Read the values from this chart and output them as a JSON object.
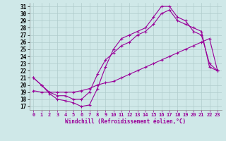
{
  "xlabel": "Windchill (Refroidissement éolien,°C)",
  "background_color": "#cfe8e8",
  "line_color": "#990099",
  "xlim": [
    -0.5,
    23.5
  ],
  "ylim": [
    16.5,
    31.5
  ],
  "xticks": [
    0,
    1,
    2,
    3,
    4,
    5,
    6,
    7,
    8,
    9,
    10,
    11,
    12,
    13,
    14,
    15,
    16,
    17,
    18,
    19,
    20,
    21,
    22,
    23
  ],
  "yticks": [
    17,
    18,
    19,
    20,
    21,
    22,
    23,
    24,
    25,
    26,
    27,
    28,
    29,
    30,
    31
  ],
  "line1_x": [
    0,
    1,
    2,
    3,
    4,
    5,
    6,
    7,
    8,
    9,
    10,
    11,
    12,
    13,
    14,
    15,
    16,
    17,
    18,
    19,
    20,
    21,
    22,
    23
  ],
  "line1_y": [
    21.0,
    20.0,
    18.8,
    18.0,
    17.8,
    17.5,
    17.0,
    17.2,
    19.5,
    22.5,
    25.0,
    26.5,
    27.0,
    27.5,
    28.0,
    29.5,
    31.0,
    31.0,
    29.5,
    29.0,
    27.5,
    27.0,
    23.0,
    22.0
  ],
  "line2_x": [
    0,
    1,
    2,
    3,
    4,
    5,
    6,
    7,
    8,
    9,
    10,
    11,
    12,
    13,
    14,
    15,
    16,
    17,
    18,
    19,
    20,
    21,
    22,
    23
  ],
  "line2_y": [
    21.0,
    20.0,
    19.0,
    18.5,
    18.5,
    18.0,
    18.0,
    19.0,
    21.5,
    23.5,
    24.5,
    25.5,
    26.0,
    27.0,
    27.5,
    28.5,
    30.0,
    30.5,
    29.0,
    28.5,
    28.0,
    27.5,
    22.5,
    22.0
  ],
  "line3_x": [
    0,
    1,
    2,
    3,
    4,
    5,
    6,
    7,
    8,
    9,
    10,
    11,
    12,
    13,
    14,
    15,
    16,
    17,
    18,
    19,
    20,
    21,
    22,
    23
  ],
  "line3_y": [
    19.2,
    19.0,
    19.0,
    19.0,
    19.0,
    19.0,
    19.2,
    19.5,
    20.0,
    20.3,
    20.5,
    21.0,
    21.5,
    22.0,
    22.5,
    23.0,
    23.5,
    24.0,
    24.5,
    25.0,
    25.5,
    26.0,
    26.5,
    22.0
  ],
  "grid_color": "#b0cccc",
  "grid_lw": 0.5
}
